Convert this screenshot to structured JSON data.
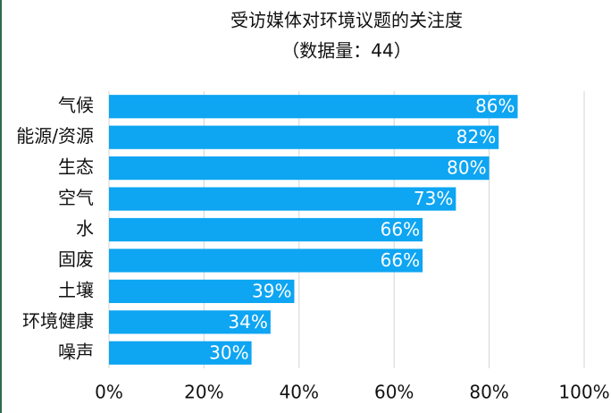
{
  "chart_data": {
    "type": "barh",
    "title": "受访媒体对环境议题的关注度",
    "subtitle": "（数据量：44）",
    "categories": [
      "气候",
      "能源/资源",
      "生态",
      "空气",
      "水",
      "固废",
      "土壤",
      "环境健康",
      "噪声"
    ],
    "values": [
      86,
      82,
      80,
      73,
      66,
      66,
      39,
      34,
      30
    ],
    "value_labels": [
      "86%",
      "82%",
      "80%",
      "73%",
      "66%",
      "66%",
      "39%",
      "34%",
      "30%"
    ],
    "color": "#0ea5f2",
    "xlim": [
      0,
      100
    ],
    "xticks": [
      {
        "value": 0,
        "label": "0%"
      },
      {
        "value": 20,
        "label": "20%"
      },
      {
        "value": 40,
        "label": "40%"
      },
      {
        "value": 60,
        "label": "60%"
      },
      {
        "value": 80,
        "label": "80%"
      },
      {
        "value": 100,
        "label": "100%"
      }
    ],
    "grid": true
  }
}
